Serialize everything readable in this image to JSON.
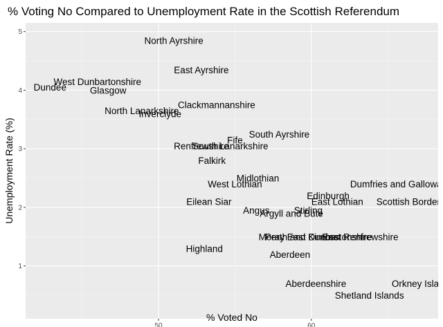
{
  "chart_data": {
    "type": "scatter",
    "title": "% Voting No Compared to Unemployment Rate in the Scottish Referendum",
    "xlabel": "% Voted No",
    "ylabel": "Unemployment Rate (%)",
    "xlim": [
      41.3,
      68.3
    ],
    "ylim": [
      0.1,
      5.15
    ],
    "xticks": [
      50,
      60
    ],
    "yticks": [
      1,
      2,
      3,
      4,
      5
    ],
    "grid": true,
    "points": [
      {
        "label": "North Ayrshire",
        "x": 51.0,
        "y": 4.85
      },
      {
        "label": "East Ayrshire",
        "x": 52.8,
        "y": 4.35
      },
      {
        "label": "West Dunbartonshire",
        "x": 46.0,
        "y": 4.15
      },
      {
        "label": "Dundee",
        "x": 42.9,
        "y": 4.05
      },
      {
        "label": "Glasgow",
        "x": 46.7,
        "y": 4.0
      },
      {
        "label": "Clackmannanshire",
        "x": 53.8,
        "y": 3.75
      },
      {
        "label": "North Lanarkshire",
        "x": 48.9,
        "y": 3.65
      },
      {
        "label": "Inverclyde",
        "x": 50.1,
        "y": 3.6
      },
      {
        "label": "South Ayrshire",
        "x": 57.9,
        "y": 3.25
      },
      {
        "label": "Fife",
        "x": 55.0,
        "y": 3.15
      },
      {
        "label": "Renfrewshire",
        "x": 52.8,
        "y": 3.05
      },
      {
        "label": "South Lanarkshire",
        "x": 54.7,
        "y": 3.05
      },
      {
        "label": "Falkirk",
        "x": 53.5,
        "y": 2.8
      },
      {
        "label": "Midlothian",
        "x": 56.5,
        "y": 2.5
      },
      {
        "label": "West Lothian",
        "x": 55.0,
        "y": 2.4
      },
      {
        "label": "Dumfries and Galloway",
        "x": 65.7,
        "y": 2.4
      },
      {
        "label": "Edinburgh",
        "x": 61.1,
        "y": 2.2
      },
      {
        "label": "Eilean Siar",
        "x": 53.3,
        "y": 2.1
      },
      {
        "label": "East Lothian",
        "x": 61.7,
        "y": 2.1
      },
      {
        "label": "Scottish Borders",
        "x": 66.5,
        "y": 2.1
      },
      {
        "label": "Angus",
        "x": 56.4,
        "y": 1.95
      },
      {
        "label": "Stirling",
        "x": 59.8,
        "y": 1.95
      },
      {
        "label": "Argyll and Bute",
        "x": 58.7,
        "y": 1.9
      },
      {
        "label": "Moray",
        "x": 57.4,
        "y": 1.5
      },
      {
        "label": "Perth and Kinross",
        "x": 59.4,
        "y": 1.5
      },
      {
        "label": "East Dunbartonshire",
        "x": 61.2,
        "y": 1.5
      },
      {
        "label": "East Renfrewshire",
        "x": 63.2,
        "y": 1.5
      },
      {
        "label": "Highland",
        "x": 53.0,
        "y": 1.3
      },
      {
        "label": "Aberdeen",
        "x": 58.6,
        "y": 1.2
      },
      {
        "label": "Aberdeenshire",
        "x": 60.3,
        "y": 0.7
      },
      {
        "label": "Orkney Islands",
        "x": 67.3,
        "y": 0.7
      },
      {
        "label": "Shetland Islands",
        "x": 63.8,
        "y": 0.5
      }
    ]
  }
}
